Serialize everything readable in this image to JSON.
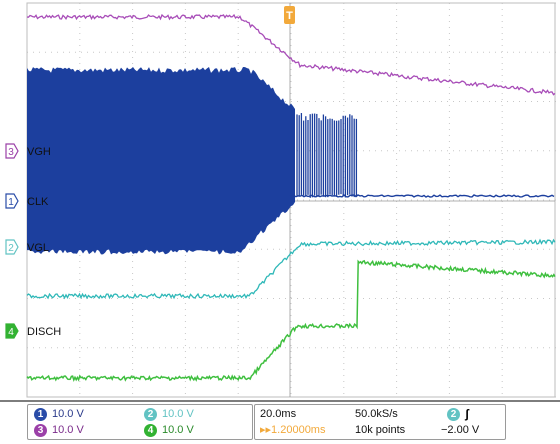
{
  "channels": [
    {
      "id": "1",
      "label": "CLK",
      "scale": "10.0 V",
      "color": "#1c3f9e",
      "badge_bg": "#2a4ca8"
    },
    {
      "id": "2",
      "label": "VGL",
      "scale": "10.0 V",
      "color": "#2fb8b8",
      "badge_bg": "#62c3c3"
    },
    {
      "id": "3",
      "label": "VGH",
      "scale": "10.0 V",
      "color": "#a84db8",
      "badge_bg": "#9b40a8"
    },
    {
      "id": "4",
      "label": "DISCH",
      "scale": "10.0 V",
      "color": "#3fbf3f",
      "badge_bg": "#32b232"
    }
  ],
  "timebase": {
    "time_per_div": "20.0ms",
    "sample_rate": "50.0kS/s",
    "delay": "▸▸1.20000ms",
    "record_length": "10k points"
  },
  "trigger": {
    "source": "2",
    "slope": "ʃ",
    "level": "−2.00 V",
    "marker": "T"
  },
  "colors": {
    "grid": "#c8c8c8",
    "accent_orange": "#f2a93b",
    "status_text": "#2a3a8a"
  }
}
